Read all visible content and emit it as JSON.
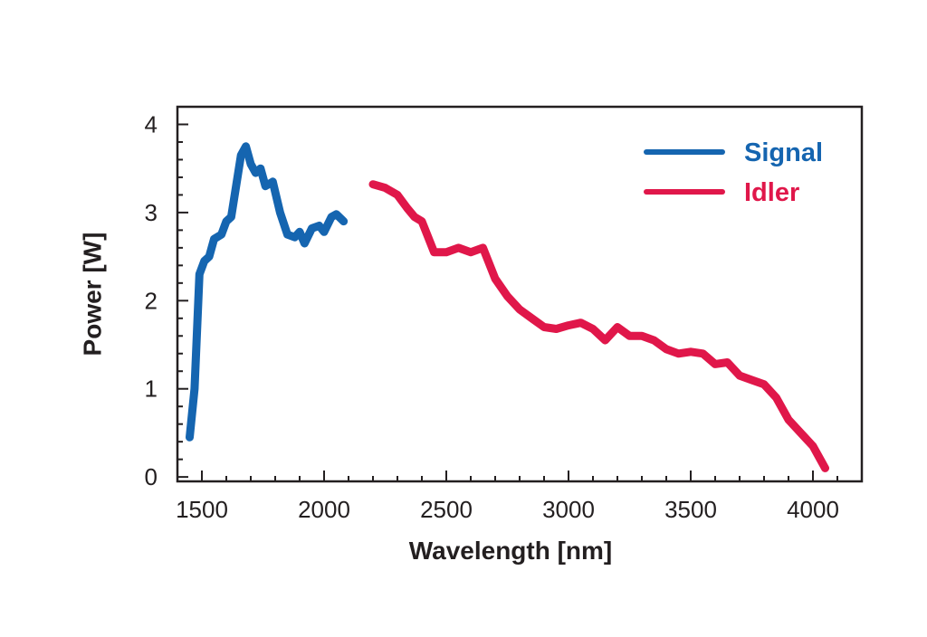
{
  "chart_data": {
    "type": "line",
    "title": "",
    "xlabel": "Wavelength [nm]",
    "ylabel": "Power [W]",
    "xlim": [
      1400,
      4200
    ],
    "ylim": [
      -0.05,
      4.2
    ],
    "xticks": [
      1500,
      2000,
      2500,
      3000,
      3500,
      4000
    ],
    "yticks": [
      0,
      1,
      2,
      3,
      4
    ],
    "x_tick_labels": [
      "1500",
      "2000",
      "2500",
      "3000",
      "3500",
      "4000"
    ],
    "y_tick_labels": [
      "0",
      "1",
      "2",
      "3",
      "4"
    ],
    "grid": false,
    "legend": "top-right",
    "series": [
      {
        "name": "Signal",
        "color": "#1565b0",
        "points": [
          [
            1450,
            0.45
          ],
          [
            1470,
            1.0
          ],
          [
            1490,
            2.3
          ],
          [
            1510,
            2.45
          ],
          [
            1530,
            2.5
          ],
          [
            1550,
            2.7
          ],
          [
            1580,
            2.75
          ],
          [
            1600,
            2.9
          ],
          [
            1620,
            2.95
          ],
          [
            1640,
            3.3
          ],
          [
            1660,
            3.65
          ],
          [
            1680,
            3.75
          ],
          [
            1700,
            3.55
          ],
          [
            1720,
            3.45
          ],
          [
            1740,
            3.5
          ],
          [
            1760,
            3.3
          ],
          [
            1790,
            3.35
          ],
          [
            1820,
            3.0
          ],
          [
            1850,
            2.75
          ],
          [
            1880,
            2.72
          ],
          [
            1900,
            2.78
          ],
          [
            1920,
            2.65
          ],
          [
            1950,
            2.82
          ],
          [
            1980,
            2.85
          ],
          [
            2000,
            2.78
          ],
          [
            2030,
            2.95
          ],
          [
            2050,
            2.98
          ],
          [
            2080,
            2.9
          ]
        ]
      },
      {
        "name": "Idler",
        "color": "#e0174a",
        "points": [
          [
            2200,
            3.32
          ],
          [
            2250,
            3.28
          ],
          [
            2300,
            3.2
          ],
          [
            2340,
            3.05
          ],
          [
            2370,
            2.95
          ],
          [
            2400,
            2.9
          ],
          [
            2450,
            2.55
          ],
          [
            2500,
            2.55
          ],
          [
            2550,
            2.6
          ],
          [
            2600,
            2.55
          ],
          [
            2650,
            2.6
          ],
          [
            2700,
            2.25
          ],
          [
            2750,
            2.05
          ],
          [
            2800,
            1.9
          ],
          [
            2850,
            1.8
          ],
          [
            2900,
            1.7
          ],
          [
            2950,
            1.68
          ],
          [
            3000,
            1.72
          ],
          [
            3050,
            1.75
          ],
          [
            3100,
            1.68
          ],
          [
            3150,
            1.55
          ],
          [
            3200,
            1.7
          ],
          [
            3250,
            1.6
          ],
          [
            3300,
            1.6
          ],
          [
            3350,
            1.55
          ],
          [
            3400,
            1.45
          ],
          [
            3450,
            1.4
          ],
          [
            3500,
            1.42
          ],
          [
            3550,
            1.4
          ],
          [
            3600,
            1.28
          ],
          [
            3650,
            1.3
          ],
          [
            3700,
            1.15
          ],
          [
            3750,
            1.1
          ],
          [
            3800,
            1.05
          ],
          [
            3850,
            0.9
          ],
          [
            3900,
            0.65
          ],
          [
            3950,
            0.5
          ],
          [
            4000,
            0.35
          ],
          [
            4050,
            0.1
          ]
        ]
      }
    ]
  }
}
